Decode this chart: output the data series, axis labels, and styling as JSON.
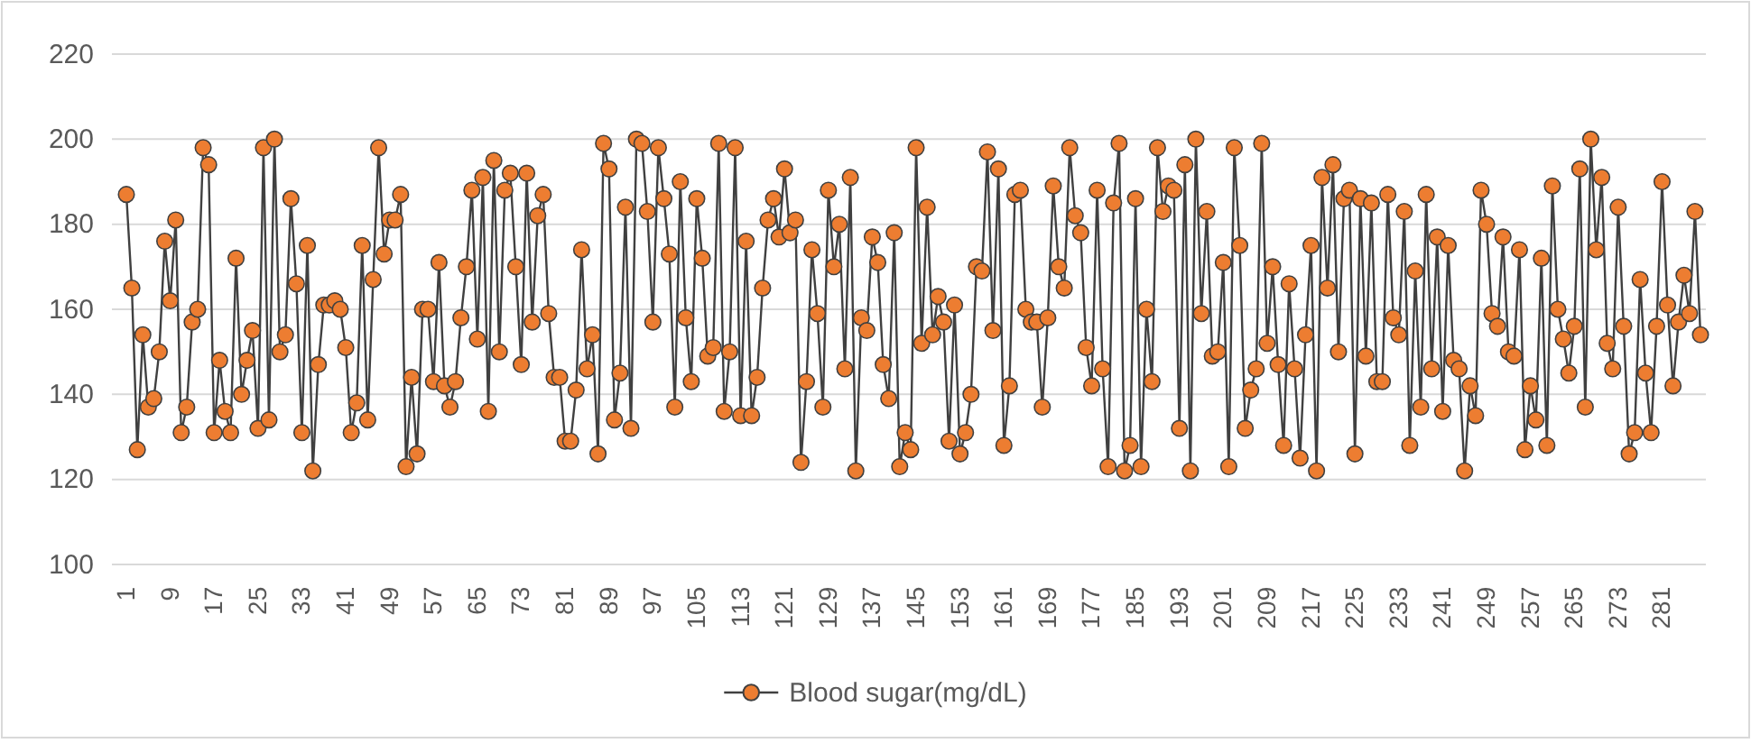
{
  "chart_data": {
    "type": "line",
    "categories": [
      "1",
      null,
      null,
      null,
      null,
      null,
      null,
      null,
      "9",
      null,
      null,
      null,
      null,
      null,
      null,
      null,
      "17",
      null,
      null,
      null,
      null,
      null,
      null,
      null,
      "25",
      null,
      null,
      null,
      null,
      null,
      null,
      null,
      "33",
      null,
      null,
      null,
      null,
      null,
      null,
      null,
      "41",
      null,
      null,
      null,
      null,
      null,
      null,
      null,
      "49",
      null,
      null,
      null,
      null,
      null,
      null,
      null,
      "57",
      null,
      null,
      null,
      null,
      null,
      null,
      null,
      "65",
      null,
      null,
      null,
      null,
      null,
      null,
      null,
      "73",
      null,
      null,
      null,
      null,
      null,
      null,
      null,
      "81",
      null,
      null,
      null,
      null,
      null,
      null,
      null,
      "89",
      null,
      null,
      null,
      null,
      null,
      null,
      null,
      "97",
      null,
      null,
      null,
      null,
      null,
      null,
      null,
      "105",
      null,
      null,
      null,
      null,
      null,
      null,
      null,
      "113",
      null,
      null,
      null,
      null,
      null,
      null,
      null,
      "121",
      null,
      null,
      null,
      null,
      null,
      null,
      null,
      "129",
      null,
      null,
      null,
      null,
      null,
      null,
      null,
      "137",
      null,
      null,
      null,
      null,
      null,
      null,
      null,
      "145",
      null,
      null,
      null,
      null,
      null,
      null,
      null,
      "153",
      null,
      null,
      null,
      null,
      null,
      null,
      null,
      "161",
      null,
      null,
      null,
      null,
      null,
      null,
      null,
      "169",
      null,
      null,
      null,
      null,
      null,
      null,
      null,
      "177",
      null,
      null,
      null,
      null,
      null,
      null,
      null,
      "185",
      null,
      null,
      null,
      null,
      null,
      null,
      null,
      "193",
      null,
      null,
      null,
      null,
      null,
      null,
      null,
      "201",
      null,
      null,
      null,
      null,
      null,
      null,
      null,
      "209",
      null,
      null,
      null,
      null,
      null,
      null,
      null,
      "217",
      null,
      null,
      null,
      null,
      null,
      null,
      null,
      "225",
      null,
      null,
      null,
      null,
      null,
      null,
      null,
      "233",
      null,
      null,
      null,
      null,
      null,
      null,
      null,
      "241",
      null,
      null,
      null,
      null,
      null,
      null,
      null,
      "249",
      null,
      null,
      null,
      null,
      null,
      null,
      null,
      "257",
      null,
      null,
      null,
      null,
      null,
      null,
      null,
      "265",
      null,
      null,
      null,
      null,
      null,
      null,
      null,
      "273",
      null,
      null,
      null,
      null,
      null,
      null,
      null,
      "281",
      null,
      null,
      null,
      null,
      null,
      null,
      null
    ],
    "series": [
      {
        "name": "Blood sugar(mg/dL)",
        "color": "#ed7d31",
        "values": [
          187,
          165,
          127,
          154,
          137,
          139,
          150,
          176,
          162,
          181,
          131,
          137,
          157,
          160,
          198,
          194,
          131,
          148,
          136,
          131,
          172,
          140,
          148,
          155,
          132,
          198,
          134,
          200,
          150,
          154,
          186,
          166,
          131,
          175,
          122,
          147,
          161,
          161,
          162,
          160,
          151,
          131,
          138,
          175,
          134,
          167,
          198,
          173,
          181,
          181,
          187,
          123,
          144,
          126,
          160,
          160,
          143,
          171,
          142,
          137,
          143,
          158,
          170,
          188,
          153,
          191,
          136,
          195,
          150,
          188,
          192,
          170,
          147,
          192,
          157,
          182,
          187,
          159,
          144,
          144,
          129,
          129,
          141,
          174,
          146,
          154,
          126,
          199,
          193,
          134,
          145,
          184,
          132,
          200,
          199,
          183,
          157,
          198,
          186,
          173,
          137,
          190,
          158,
          143,
          186,
          172,
          149,
          151,
          199,
          136,
          150,
          198,
          135,
          176,
          135,
          144,
          165,
          181,
          186,
          177,
          193,
          178,
          181,
          124,
          143,
          174,
          159,
          137,
          188,
          170,
          180,
          146,
          191,
          122,
          158,
          155,
          177,
          171,
          147,
          139,
          178,
          123,
          131,
          127,
          198,
          152,
          184,
          154,
          163,
          157,
          129,
          161,
          126,
          131,
          140,
          170,
          169,
          197,
          155,
          193,
          128,
          142,
          187,
          188,
          160,
          157,
          157,
          137,
          158,
          189,
          170,
          165,
          198,
          182,
          178,
          151,
          142,
          188,
          146,
          123,
          185,
          199,
          122,
          128,
          186,
          123,
          160,
          143,
          198,
          183,
          189,
          188,
          132,
          194,
          122,
          200,
          159,
          183,
          149,
          150,
          171,
          123,
          198,
          175,
          132,
          141,
          146,
          199,
          152,
          170,
          147,
          128,
          166,
          146,
          125,
          154,
          175,
          122,
          191,
          165,
          194,
          150,
          186,
          188,
          126,
          186,
          149,
          185,
          143,
          143,
          187,
          158,
          154,
          183,
          128,
          169,
          137,
          187,
          146,
          177,
          136,
          175,
          148,
          146,
          122,
          142,
          135,
          188,
          180,
          159,
          156,
          177,
          150,
          149,
          174,
          127,
          142,
          134,
          172,
          128,
          189,
          160,
          153,
          145,
          156,
          193,
          137,
          200,
          174,
          191,
          152,
          146,
          184,
          156,
          126,
          131,
          167,
          145,
          131,
          156,
          190,
          161,
          142,
          157,
          168,
          159,
          183,
          154
        ]
      }
    ],
    "ylim": [
      100,
      220
    ],
    "yticks": [
      100,
      120,
      140,
      160,
      180,
      200,
      220
    ],
    "grid": "y",
    "legend": "bottom",
    "marker": "circle"
  }
}
